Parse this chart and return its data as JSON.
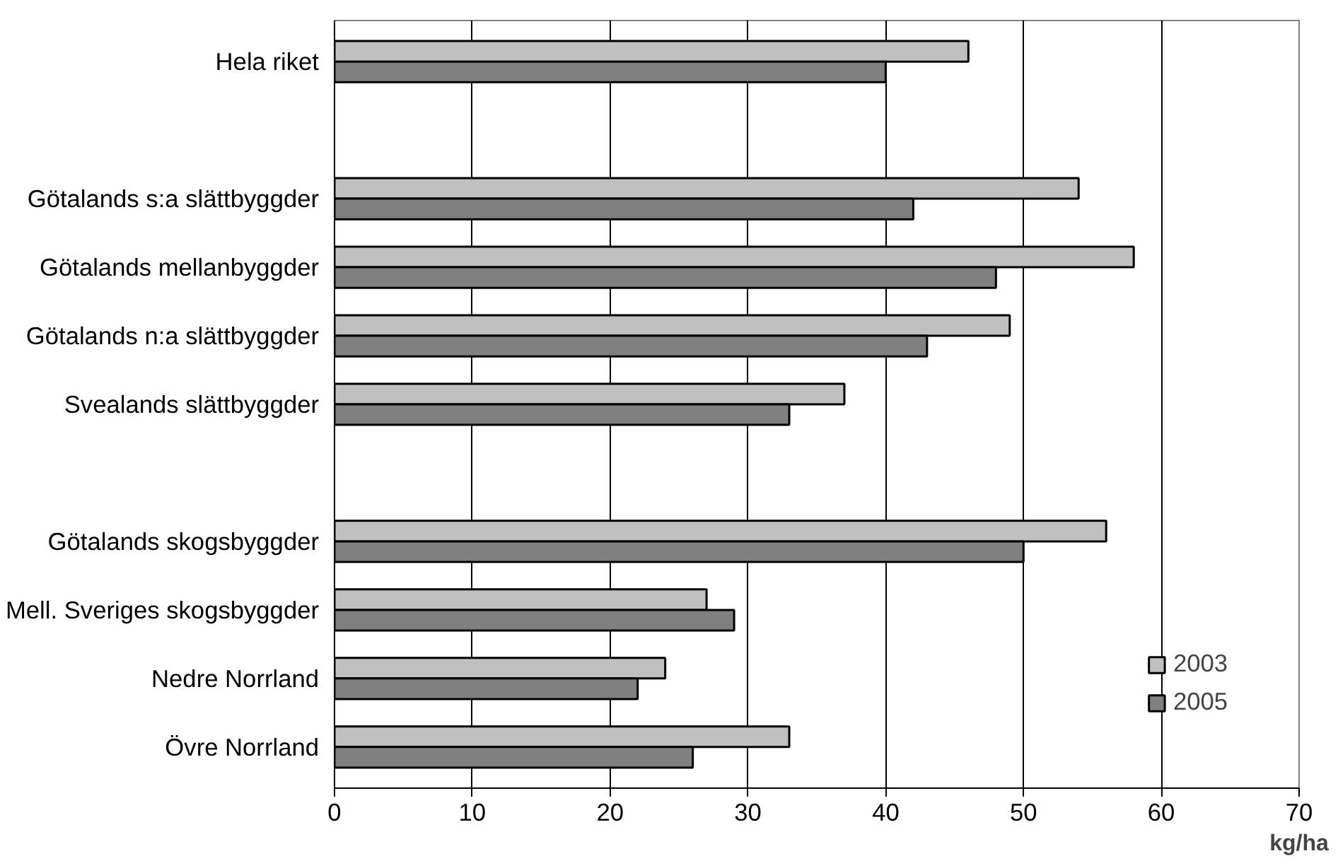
{
  "chart_data": {
    "type": "bar",
    "orientation": "horizontal",
    "categories": [
      "Hela riket",
      null,
      "Götalands s:a slättbyggder",
      "Götalands mellanbyggder",
      "Götalands n:a slättbyggder",
      "Svealands slättbyggder",
      null,
      "Götalands skogsbyggder",
      "Mell. Sveriges skogsbyggder",
      "Nedre Norrland",
      "Övre Norrland"
    ],
    "series": [
      {
        "name": "2003",
        "color": "#c0c0c0",
        "values": [
          46,
          null,
          54,
          58,
          49,
          37,
          null,
          56,
          27,
          24,
          33
        ]
      },
      {
        "name": "2005",
        "color": "#808080",
        "values": [
          40,
          null,
          42,
          48,
          43,
          33,
          null,
          50,
          29,
          22,
          26
        ]
      }
    ],
    "xlabel": "kg/ha",
    "xlim": [
      0,
      70
    ],
    "xticks": [
      0,
      10,
      20,
      30,
      40,
      50,
      60,
      70
    ],
    "grid": "x",
    "legend": "bottom right"
  }
}
